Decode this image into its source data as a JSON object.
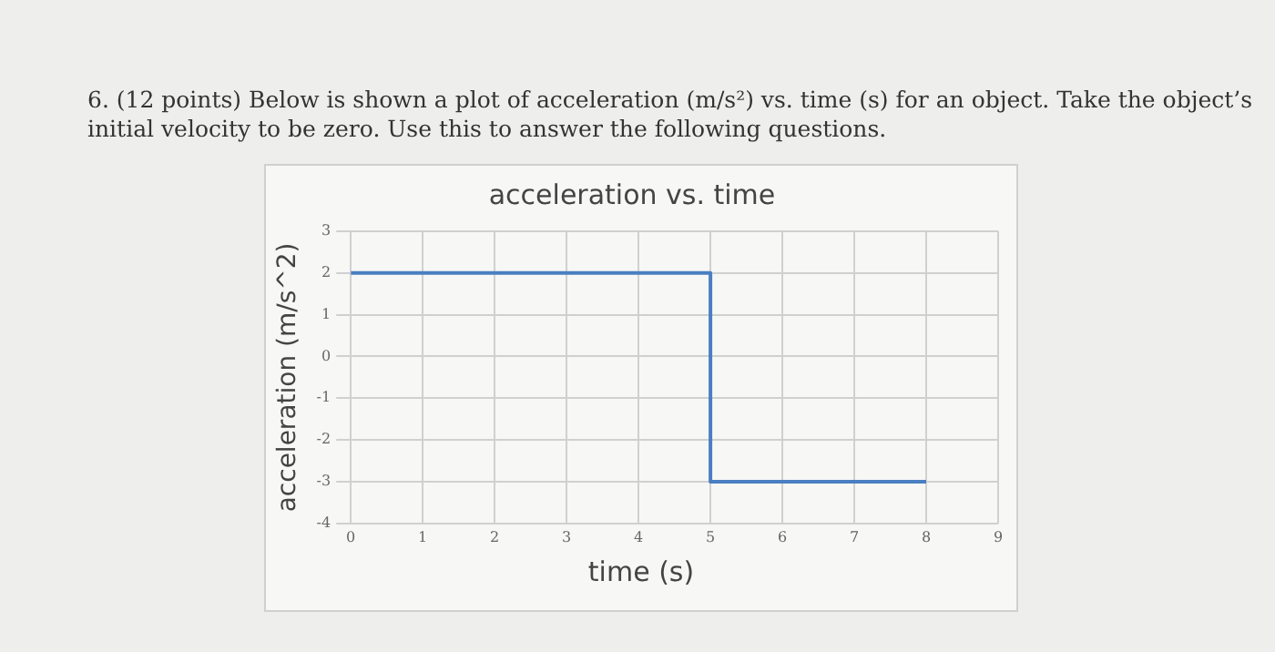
{
  "chart_data": {
    "type": "step",
    "title": "acceleration vs. time",
    "xlabel": "time (s)",
    "ylabel": "acceleration (m/s^2)",
    "annotations": [
      "6. (12 points) Below is shown a plot of acceleration (m/s²) vs. time (s) for an object. Take the object’s initial velocity to be zero. Use this to answer the following questions."
    ],
    "x": [
      0,
      5,
      8
    ],
    "series": [
      {
        "color": "#4a7fc1",
        "values": [
          2,
          -3,
          -3
        ]
      }
    ],
    "xlim": [
      0,
      9
    ],
    "xticks": [
      0,
      1,
      2,
      3,
      4,
      5,
      6,
      7,
      8,
      9
    ],
    "ylim": [
      -4,
      3
    ],
    "yticks": [
      -4,
      -3,
      -2,
      -1,
      0,
      1,
      2,
      3
    ],
    "grid": true,
    "legend": false,
    "marker": "none",
    "line_style": "solid"
  }
}
